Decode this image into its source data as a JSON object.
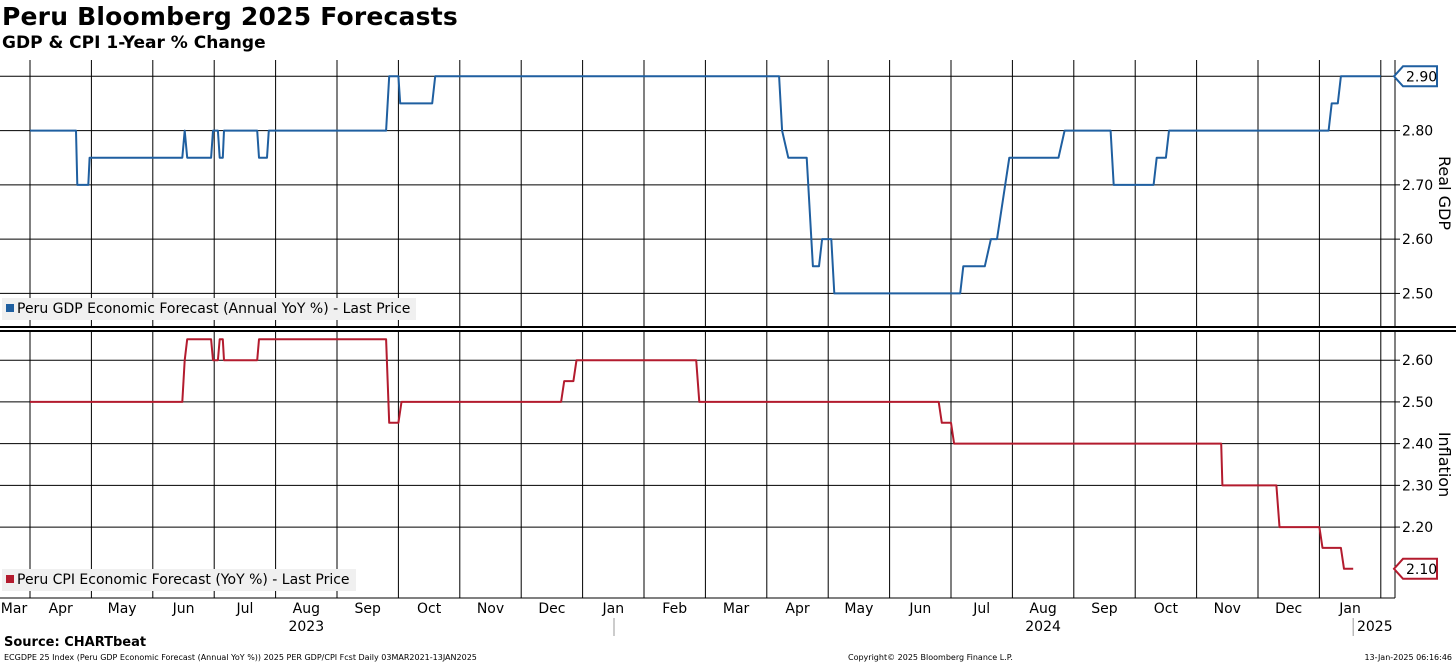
{
  "chart_data": {
    "type": "line",
    "title": "Peru Bloomberg 2025 Forecasts",
    "subtitle": "GDP & CPI 1-Year % Change",
    "months": [
      "Mar",
      "Apr",
      "May",
      "Jun",
      "Jul",
      "Aug",
      "Sep",
      "Oct",
      "Nov",
      "Dec",
      "Jan",
      "Feb",
      "Mar",
      "Apr",
      "May",
      "Jun",
      "Jul",
      "Aug",
      "Sep",
      "Oct",
      "Nov",
      "Dec",
      "Jan"
    ],
    "years": [
      {
        "label": "2023",
        "month_index": 4.5
      },
      {
        "label": "2024",
        "month_index": 16.5
      },
      {
        "label": "2025",
        "month_index": 22.0
      }
    ],
    "panels": [
      {
        "id": "gdp",
        "axis_label": "Real GDP",
        "ylim": [
          2.44,
          2.93
        ],
        "ticks": [
          2.5,
          2.6,
          2.7,
          2.8,
          2.9
        ],
        "tick_labels": [
          "2.50",
          "2.60",
          "2.70",
          "2.80",
          "2.90"
        ],
        "series": {
          "name": "Peru GDP Economic Forecast (Annual YoY %) - Last Price",
          "color": "#1f5fa0",
          "last_value": "2.90",
          "points": [
            [
              0.0,
              2.8
            ],
            [
              0.75,
              2.8
            ],
            [
              0.77,
              2.7
            ],
            [
              0.95,
              2.7
            ],
            [
              0.97,
              2.75
            ],
            [
              2.48,
              2.75
            ],
            [
              2.52,
              2.8
            ],
            [
              2.56,
              2.75
            ],
            [
              2.95,
              2.75
            ],
            [
              2.98,
              2.8
            ],
            [
              3.06,
              2.8
            ],
            [
              3.09,
              2.75
            ],
            [
              3.14,
              2.75
            ],
            [
              3.16,
              2.8
            ],
            [
              3.7,
              2.8
            ],
            [
              3.73,
              2.75
            ],
            [
              3.86,
              2.75
            ],
            [
              3.89,
              2.8
            ],
            [
              5.8,
              2.8
            ],
            [
              5.85,
              2.9
            ],
            [
              6.0,
              2.9
            ],
            [
              6.03,
              2.85
            ],
            [
              6.55,
              2.85
            ],
            [
              6.6,
              2.9
            ],
            [
              12.2,
              2.9
            ],
            [
              12.25,
              2.8
            ],
            [
              12.35,
              2.75
            ],
            [
              12.65,
              2.75
            ],
            [
              12.75,
              2.55
            ],
            [
              12.85,
              2.55
            ],
            [
              12.9,
              2.6
            ],
            [
              13.05,
              2.6
            ],
            [
              13.1,
              2.5
            ],
            [
              15.15,
              2.5
            ],
            [
              15.2,
              2.55
            ],
            [
              15.55,
              2.55
            ],
            [
              15.65,
              2.6
            ],
            [
              15.75,
              2.6
            ],
            [
              15.95,
              2.75
            ],
            [
              16.75,
              2.75
            ],
            [
              16.85,
              2.8
            ],
            [
              17.6,
              2.8
            ],
            [
              17.65,
              2.7
            ],
            [
              18.3,
              2.7
            ],
            [
              18.35,
              2.75
            ],
            [
              18.5,
              2.75
            ],
            [
              18.55,
              2.8
            ],
            [
              21.15,
              2.8
            ],
            [
              21.2,
              2.85
            ],
            [
              21.3,
              2.85
            ],
            [
              21.35,
              2.9
            ],
            [
              22.0,
              2.9
            ]
          ]
        }
      },
      {
        "id": "cpi",
        "axis_label": "Inflation",
        "ylim": [
          2.03,
          2.67
        ],
        "ticks": [
          2.2,
          2.3,
          2.4,
          2.5,
          2.6
        ],
        "tick_labels": [
          "2.20",
          "2.30",
          "2.40",
          "2.50",
          "2.60"
        ],
        "series": {
          "name": "Peru CPI Economic Forecast (YoY %) - Last Price",
          "color": "#b31b2e",
          "last_value": "2.10",
          "points": [
            [
              0.0,
              2.5
            ],
            [
              2.48,
              2.5
            ],
            [
              2.52,
              2.6
            ],
            [
              2.56,
              2.65
            ],
            [
              2.95,
              2.65
            ],
            [
              2.98,
              2.6
            ],
            [
              3.06,
              2.6
            ],
            [
              3.09,
              2.65
            ],
            [
              3.14,
              2.65
            ],
            [
              3.16,
              2.6
            ],
            [
              3.7,
              2.6
            ],
            [
              3.73,
              2.65
            ],
            [
              5.8,
              2.65
            ],
            [
              5.85,
              2.45
            ],
            [
              6.0,
              2.45
            ],
            [
              6.05,
              2.5
            ],
            [
              8.65,
              2.5
            ],
            [
              8.7,
              2.55
            ],
            [
              8.85,
              2.55
            ],
            [
              8.9,
              2.6
            ],
            [
              10.85,
              2.6
            ],
            [
              10.9,
              2.5
            ],
            [
              14.8,
              2.5
            ],
            [
              14.85,
              2.45
            ],
            [
              15.0,
              2.45
            ],
            [
              15.05,
              2.4
            ],
            [
              19.4,
              2.4
            ],
            [
              19.42,
              2.3
            ],
            [
              20.3,
              2.3
            ],
            [
              20.35,
              2.2
            ],
            [
              21.0,
              2.2
            ],
            [
              21.05,
              2.15
            ],
            [
              21.35,
              2.15
            ],
            [
              21.4,
              2.1
            ],
            [
              21.55,
              2.1
            ]
          ]
        }
      }
    ],
    "grid": true,
    "legend_position": "bottom-left of each panel"
  },
  "footer": {
    "source": "Source: CHARTbeat",
    "left": "ECGDPE 25 Index (Peru GDP Economic Forecast (Annual YoY %)) 2025 PER GDP/CPI Fcst  Daily 03MAR2021-13JAN2025",
    "center": "Copyright© 2025 Bloomberg Finance L.P.",
    "right": "13-Jan-2025 06:16:46"
  },
  "colors": {
    "gdp": "#1f5fa0",
    "cpi": "#b31b2e",
    "grid": "#000000"
  }
}
